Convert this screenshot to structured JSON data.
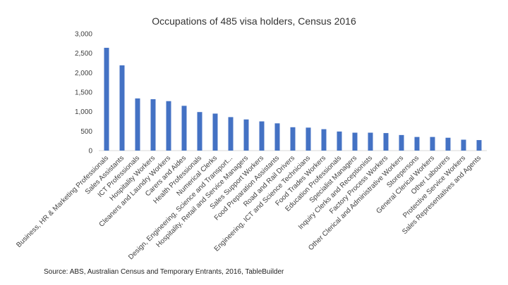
{
  "chart_data": {
    "type": "bar",
    "title": "Occupations of 485 visa holders, Census 2016",
    "xlabel": "",
    "ylabel": "",
    "ylim": [
      0,
      3000
    ],
    "ytick_labels": [
      "0",
      "500",
      "1,000",
      "1,500",
      "2,000",
      "2,500",
      "3,000"
    ],
    "ytick_values": [
      0,
      500,
      1000,
      1500,
      2000,
      2500,
      3000
    ],
    "grid": false,
    "legend": "none",
    "categories": [
      "Business, HR & Marketing Professionals",
      "Sales Assistants",
      "ICT Professionals",
      "Hospitality Workers",
      "Cleaners and Laundry Workers",
      "Carers and Aides",
      "Health Professionals",
      "Numerical Clerks",
      "Design, Engineering, Science and Transport...",
      "Hospitality, Retail and Service Managers",
      "Sales Support Workers",
      "Food Preparation Assistants",
      "Road and Rail Drivers",
      "Engineering, ICT and Science Technicians",
      "Food Trades Workers",
      "Education Professionals",
      "Specialist Managers",
      "Inquiry Clerks and Receptionists",
      "Factory Process Workers",
      "Other Clerical and Administrative Workers",
      "Storepersons",
      "General Clerical Workers",
      "Other Labourers",
      "Protective Service Workers",
      "Sales Representatives and Agents"
    ],
    "values": [
      2640,
      2190,
      1340,
      1320,
      1270,
      1150,
      990,
      950,
      860,
      800,
      750,
      700,
      600,
      590,
      550,
      490,
      460,
      460,
      450,
      400,
      350,
      350,
      330,
      280,
      270
    ],
    "colors": {
      "bar": "#4472c4"
    }
  },
  "source": "Source: ABS, Australian Census and Temporary Entrants, 2016, TableBuilder"
}
